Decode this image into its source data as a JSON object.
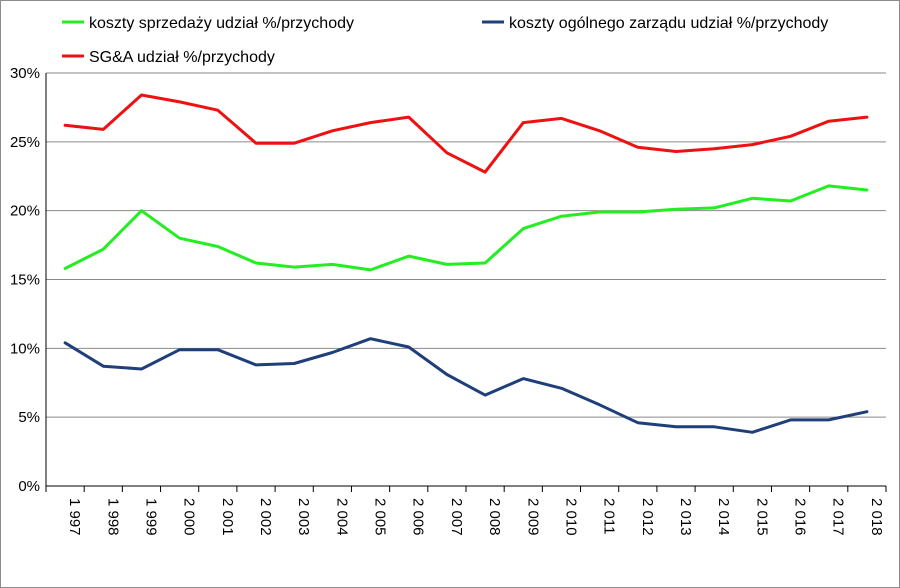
{
  "chart_data": {
    "type": "line",
    "title": "",
    "xlabel": "",
    "ylabel": "",
    "ylim": [
      0,
      30
    ],
    "y_ticks": [
      "0%",
      "5%",
      "10%",
      "15%",
      "20%",
      "25%",
      "30%"
    ],
    "grid": true,
    "legend_position": "top",
    "categories": [
      "1 997",
      "1 998",
      "1 999",
      "2 000",
      "2 001",
      "2 002",
      "2 003",
      "2 004",
      "2 005",
      "2 006",
      "2 007",
      "2 008",
      "2 009",
      "2 010",
      "2 011",
      "2 012",
      "2 013",
      "2 014",
      "2 015",
      "2 016",
      "2 017",
      "2 018"
    ],
    "series": [
      {
        "name": "koszty sprzedaży udział %/przychody",
        "color": "#22ee22",
        "values": [
          15.8,
          17.2,
          20.0,
          18.0,
          17.4,
          16.2,
          15.9,
          16.1,
          15.7,
          16.7,
          16.1,
          16.2,
          18.7,
          19.6,
          19.9,
          19.9,
          20.1,
          20.2,
          20.9,
          20.7,
          21.8,
          21.5
        ]
      },
      {
        "name": "koszty ogólnego zarządu udział %/przychody",
        "color": "#1f3f7a",
        "values": [
          10.4,
          8.7,
          8.5,
          9.9,
          9.9,
          8.8,
          8.9,
          9.7,
          10.7,
          10.1,
          8.1,
          6.6,
          7.8,
          7.1,
          5.9,
          4.6,
          4.3,
          4.3,
          3.9,
          4.8,
          4.8,
          5.4
        ]
      },
      {
        "name": "SG&A udział %/przychody",
        "color": "#ee1111",
        "values": [
          26.2,
          25.9,
          28.4,
          27.9,
          27.3,
          24.9,
          24.9,
          25.8,
          26.4,
          26.8,
          24.2,
          22.8,
          26.4,
          26.7,
          25.8,
          24.6,
          24.3,
          24.5,
          24.8,
          25.4,
          26.5,
          26.8
        ]
      }
    ]
  }
}
